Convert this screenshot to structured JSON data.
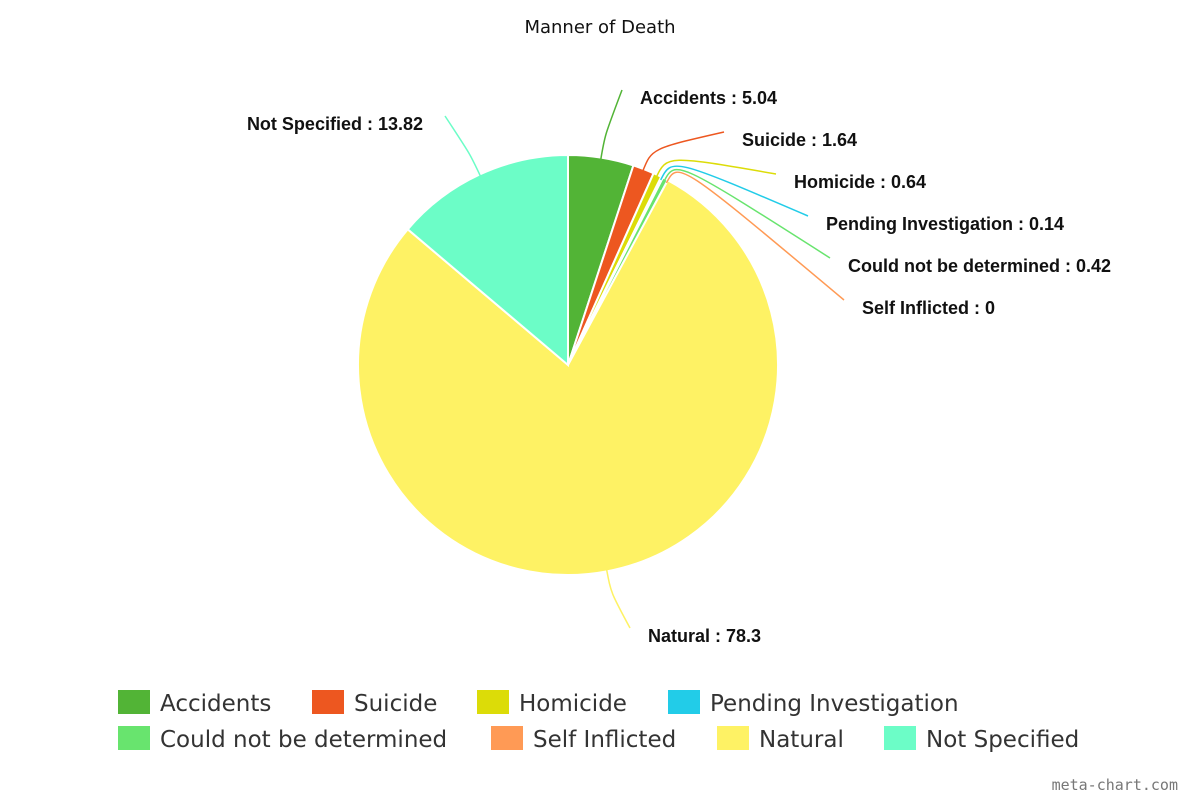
{
  "chart_data": {
    "type": "pie",
    "title": "Manner of Death",
    "unit": "percent",
    "slices": [
      {
        "label": "Accidents",
        "value": 5.04,
        "color": "#52b436",
        "data_label": "Accidents : 5.04"
      },
      {
        "label": "Suicide",
        "value": 1.64,
        "color": "#ed5720",
        "data_label": "Suicide : 1.64"
      },
      {
        "label": "Homicide",
        "value": 0.64,
        "color": "#dcdc08",
        "data_label": "Homicide : 0.64"
      },
      {
        "label": "Pending Investigation",
        "value": 0.14,
        "color": "#22cce8",
        "data_label": "Pending Investigation : 0.14"
      },
      {
        "label": "Could not be determined",
        "value": 0.42,
        "color": "#68e46e",
        "data_label": "Could not be determined : 0.42"
      },
      {
        "label": "Self Inflicted",
        "value": 0,
        "color": "#ff9a55",
        "data_label": "Self Inflicted : 0"
      },
      {
        "label": "Natural",
        "value": 78.3,
        "color": "#fef264",
        "data_label": "Natural : 78.3"
      },
      {
        "label": "Not Specified",
        "value": 13.82,
        "color": "#6cfdc7",
        "data_label": "Not Specified : 13.82"
      }
    ],
    "legend_position": "bottom"
  },
  "credit": "meta-chart.com"
}
